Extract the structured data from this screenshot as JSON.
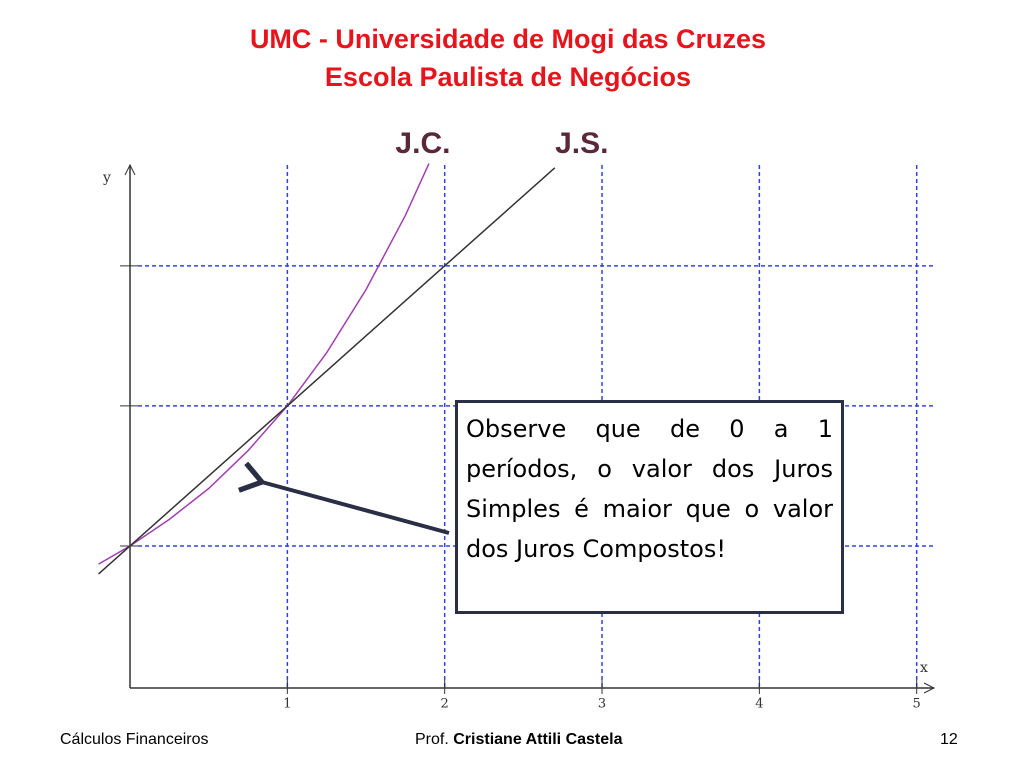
{
  "header": {
    "title": "UMC - Universidade de Mogi das Cruzes",
    "subtitle": "Escola Paulista de Negócios"
  },
  "chart_data": {
    "type": "line",
    "x": [
      -0.2,
      0,
      0.25,
      0.5,
      0.75,
      1,
      1.25,
      1.5,
      1.75,
      1.9,
      2.25,
      2.7
    ],
    "series": [
      {
        "name": "J.C.",
        "color": "#a040b0",
        "values": [
          0.87,
          1,
          1.19,
          1.41,
          1.68,
          2,
          2.38,
          2.83,
          3.36,
          3.73,
          null,
          null
        ]
      },
      {
        "name": "J.S.",
        "color": "#333333",
        "values": [
          0.8,
          1,
          1.25,
          1.5,
          1.75,
          2,
          2.25,
          2.5,
          2.75,
          2.9,
          3.25,
          3.7
        ]
      }
    ],
    "xlim": [
      -0.22,
      5.11
    ],
    "ylim": [
      0,
      3.72
    ],
    "xticks": [
      1,
      2,
      3,
      4,
      5
    ],
    "yticks": [
      1,
      2,
      3
    ],
    "x_label": "x",
    "y_label": "y",
    "grid": true
  },
  "callout": {
    "text": "Observe que de 0 a 1 períodos, o valor dos Juros Simples é maior que o valor dos Juros Compostos!"
  },
  "footer": {
    "left": "Cálculos Financeiros",
    "author_prefix": "Prof.",
    "author": "Cristiane Attili Castela",
    "page": "12"
  }
}
